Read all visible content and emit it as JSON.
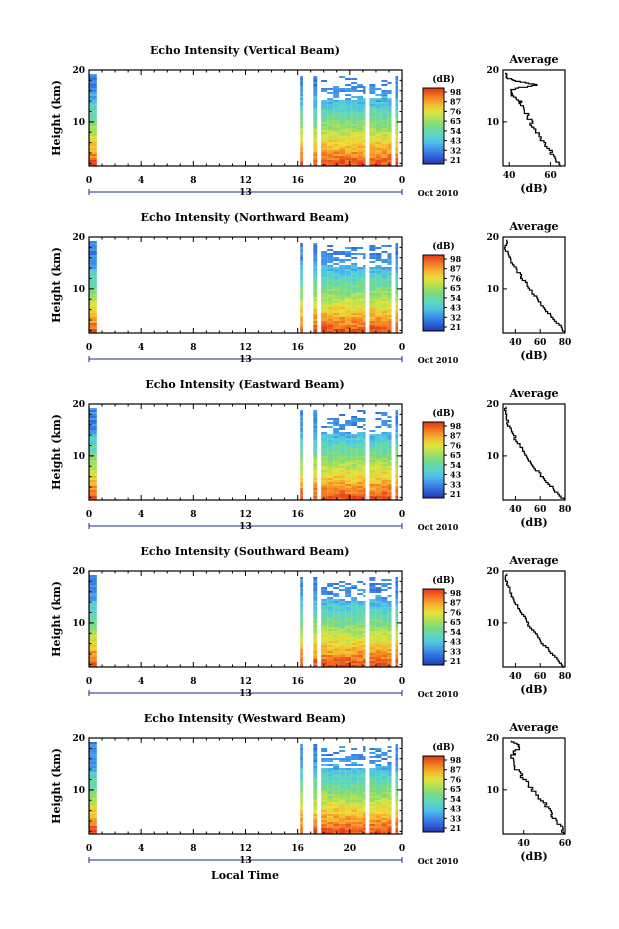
{
  "colors": {
    "colormap": [
      "#2a2f9e",
      "#2b5fd8",
      "#3f8fe8",
      "#4fc3e6",
      "#5fd6c0",
      "#79d986",
      "#a8e05a",
      "#e4e43c",
      "#f7b52f",
      "#f37a23",
      "#e1401b"
    ],
    "axis": "#000000",
    "date_axis": "#1a2b8c"
  },
  "xlabel": "Local Time",
  "date_label": "Oct 2010",
  "chart_data": [
    {
      "type": "heatmap",
      "title": "Echo Intensity (Vertical Beam)",
      "ylabel": "Height (km)",
      "xticks": [
        "0",
        "4",
        "8",
        "12",
        "16",
        "20",
        "0"
      ],
      "date_tick": "13",
      "xlim": [
        0,
        24
      ],
      "yticks": [
        "10",
        "20"
      ],
      "ylim": [
        1.5,
        20
      ],
      "colorbar": {
        "unit": "(dB)",
        "ticks": [
          "98",
          "87",
          "76",
          "65",
          "54",
          "43",
          "32",
          "21"
        ],
        "range": [
          21,
          98
        ]
      },
      "data_blocks": [
        [
          0,
          0.6
        ],
        [
          16.2,
          16.4
        ],
        [
          17.2,
          17.5
        ],
        [
          17.8,
          21.2
        ],
        [
          21.5,
          23.2
        ],
        [
          23.5,
          23.7
        ]
      ],
      "average": {
        "title": "Average",
        "xlabel": "(dB)",
        "xticks": [
          "40",
          "60"
        ],
        "xlim": [
          37,
          67
        ],
        "yticks": [
          "10",
          "20"
        ],
        "ylim": [
          1.5,
          20
        ],
        "profile": [
          [
            65,
            1.5
          ],
          [
            63,
            3
          ],
          [
            60,
            4.5
          ],
          [
            57,
            6
          ],
          [
            55,
            7.5
          ],
          [
            52,
            9
          ],
          [
            50,
            10.5
          ],
          [
            48,
            12
          ],
          [
            46,
            13.5
          ],
          [
            44,
            14.5
          ],
          [
            41,
            15.5
          ],
          [
            42,
            16.5
          ],
          [
            54,
            17.2
          ],
          [
            45,
            17.8
          ],
          [
            40,
            18.5
          ],
          [
            38,
            19.5
          ]
        ]
      }
    },
    {
      "type": "heatmap",
      "title": "Echo Intensity (Northward Beam)",
      "ylabel": "Height (km)",
      "xticks": [
        "0",
        "4",
        "8",
        "12",
        "16",
        "20",
        "0"
      ],
      "date_tick": "13",
      "xlim": [
        0,
        24
      ],
      "yticks": [
        "10",
        "20"
      ],
      "ylim": [
        1.5,
        20
      ],
      "colorbar": {
        "unit": "(dB)",
        "ticks": [
          "98",
          "87",
          "76",
          "65",
          "54",
          "43",
          "32",
          "21"
        ],
        "range": [
          21,
          98
        ]
      },
      "data_blocks": [
        [
          0,
          0.6
        ],
        [
          16.2,
          16.4
        ],
        [
          17.2,
          17.5
        ],
        [
          17.8,
          21.2
        ],
        [
          21.5,
          23.2
        ],
        [
          23.5,
          23.7
        ]
      ],
      "average": {
        "title": "Average",
        "xlabel": "(dB)",
        "xticks": [
          "40",
          "60",
          "80"
        ],
        "xlim": [
          30,
          80
        ],
        "yticks": [
          "10",
          "20"
        ],
        "ylim": [
          1.5,
          20
        ],
        "profile": [
          [
            80,
            1.5
          ],
          [
            76,
            3
          ],
          [
            70,
            4.5
          ],
          [
            65,
            6
          ],
          [
            60,
            7.5
          ],
          [
            55,
            9
          ],
          [
            51,
            10.5
          ],
          [
            46,
            12
          ],
          [
            42,
            13.5
          ],
          [
            38,
            15
          ],
          [
            35,
            16.5
          ],
          [
            32,
            18
          ],
          [
            33,
            19.5
          ]
        ]
      }
    },
    {
      "type": "heatmap",
      "title": "Echo Intensity (Eastward Beam)",
      "ylabel": "Height (km)",
      "xticks": [
        "0",
        "4",
        "8",
        "12",
        "16",
        "20",
        "0"
      ],
      "date_tick": "13",
      "xlim": [
        0,
        24
      ],
      "yticks": [
        "10",
        "20"
      ],
      "ylim": [
        1.5,
        20
      ],
      "colorbar": {
        "unit": "(dB)",
        "ticks": [
          "98",
          "87",
          "76",
          "65",
          "54",
          "43",
          "33",
          "21"
        ],
        "range": [
          21,
          98
        ]
      },
      "data_blocks": [
        [
          0,
          0.6
        ],
        [
          16.2,
          16.4
        ],
        [
          17.2,
          17.5
        ],
        [
          17.8,
          21.2
        ],
        [
          21.5,
          23.2
        ],
        [
          23.5,
          23.7
        ]
      ],
      "average": {
        "title": "Average",
        "xlabel": "(dB)",
        "xticks": [
          "40",
          "60",
          "80"
        ],
        "xlim": [
          30,
          80
        ],
        "yticks": [
          "10",
          "20"
        ],
        "ylim": [
          1.5,
          20
        ],
        "profile": [
          [
            80,
            1.5
          ],
          [
            74,
            3
          ],
          [
            68,
            4.5
          ],
          [
            62,
            6
          ],
          [
            57,
            7.5
          ],
          [
            52,
            9
          ],
          [
            48,
            10.5
          ],
          [
            44,
            12
          ],
          [
            40,
            13.5
          ],
          [
            37,
            15
          ],
          [
            34,
            16.5
          ],
          [
            33,
            18
          ],
          [
            32,
            19.5
          ]
        ]
      }
    },
    {
      "type": "heatmap",
      "title": "Echo Intensity (Southward Beam)",
      "ylabel": "Height (km)",
      "xticks": [
        "0",
        "4",
        "8",
        "12",
        "16",
        "20",
        "0"
      ],
      "date_tick": "13",
      "xlim": [
        0,
        24
      ],
      "yticks": [
        "10",
        "20"
      ],
      "ylim": [
        1.5,
        20
      ],
      "colorbar": {
        "unit": "(dB)",
        "ticks": [
          "98",
          "87",
          "76",
          "65",
          "54",
          "43",
          "33",
          "21"
        ],
        "range": [
          21,
          98
        ]
      },
      "data_blocks": [
        [
          0,
          0.6
        ],
        [
          16.2,
          16.4
        ],
        [
          17.2,
          17.5
        ],
        [
          17.8,
          21.2
        ],
        [
          21.5,
          23.2
        ],
        [
          23.5,
          23.7
        ]
      ],
      "average": {
        "title": "Average",
        "xlabel": "(dB)",
        "xticks": [
          "40",
          "60",
          "80"
        ],
        "xlim": [
          30,
          80
        ],
        "yticks": [
          "10",
          "20"
        ],
        "ylim": [
          1.5,
          20
        ],
        "profile": [
          [
            80,
            1.5
          ],
          [
            75,
            3
          ],
          [
            69,
            4.5
          ],
          [
            63,
            6
          ],
          [
            58,
            7.5
          ],
          [
            53,
            9
          ],
          [
            49,
            10.5
          ],
          [
            45,
            12
          ],
          [
            41,
            13.5
          ],
          [
            38,
            15
          ],
          [
            35,
            16.5
          ],
          [
            33,
            18
          ],
          [
            32,
            19.5
          ]
        ]
      }
    },
    {
      "type": "heatmap",
      "title": "Echo Intensity (Westward Beam)",
      "ylabel": "Height (km)",
      "xticks": [
        "0",
        "4",
        "8",
        "12",
        "16",
        "20",
        "0"
      ],
      "date_tick": "13",
      "xlim": [
        0,
        24
      ],
      "yticks": [
        "10",
        "20"
      ],
      "ylim": [
        1.5,
        20
      ],
      "colorbar": {
        "unit": "(dB)",
        "ticks": [
          "98",
          "87",
          "76",
          "65",
          "54",
          "43",
          "33",
          "21"
        ],
        "range": [
          21,
          98
        ]
      },
      "data_blocks": [
        [
          0,
          0.6
        ],
        [
          16.2,
          16.4
        ],
        [
          17.2,
          17.5
        ],
        [
          17.8,
          21.2
        ],
        [
          21.5,
          23.2
        ],
        [
          23.5,
          23.7
        ]
      ],
      "average": {
        "title": "Average",
        "xlabel": "(dB)",
        "xticks": [
          "40",
          "60"
        ],
        "xlim": [
          30,
          60
        ],
        "yticks": [
          "10",
          "20"
        ],
        "ylim": [
          1.5,
          20
        ],
        "profile": [
          [
            60,
            1.5
          ],
          [
            58,
            3
          ],
          [
            55,
            4.5
          ],
          [
            53,
            6
          ],
          [
            50,
            7.5
          ],
          [
            47,
            9
          ],
          [
            44,
            10.5
          ],
          [
            41,
            12
          ],
          [
            38,
            13.5
          ],
          [
            35,
            15
          ],
          [
            34,
            16.5
          ],
          [
            36,
            17.5
          ],
          [
            38,
            18.5
          ],
          [
            35,
            19.5
          ]
        ]
      }
    }
  ]
}
